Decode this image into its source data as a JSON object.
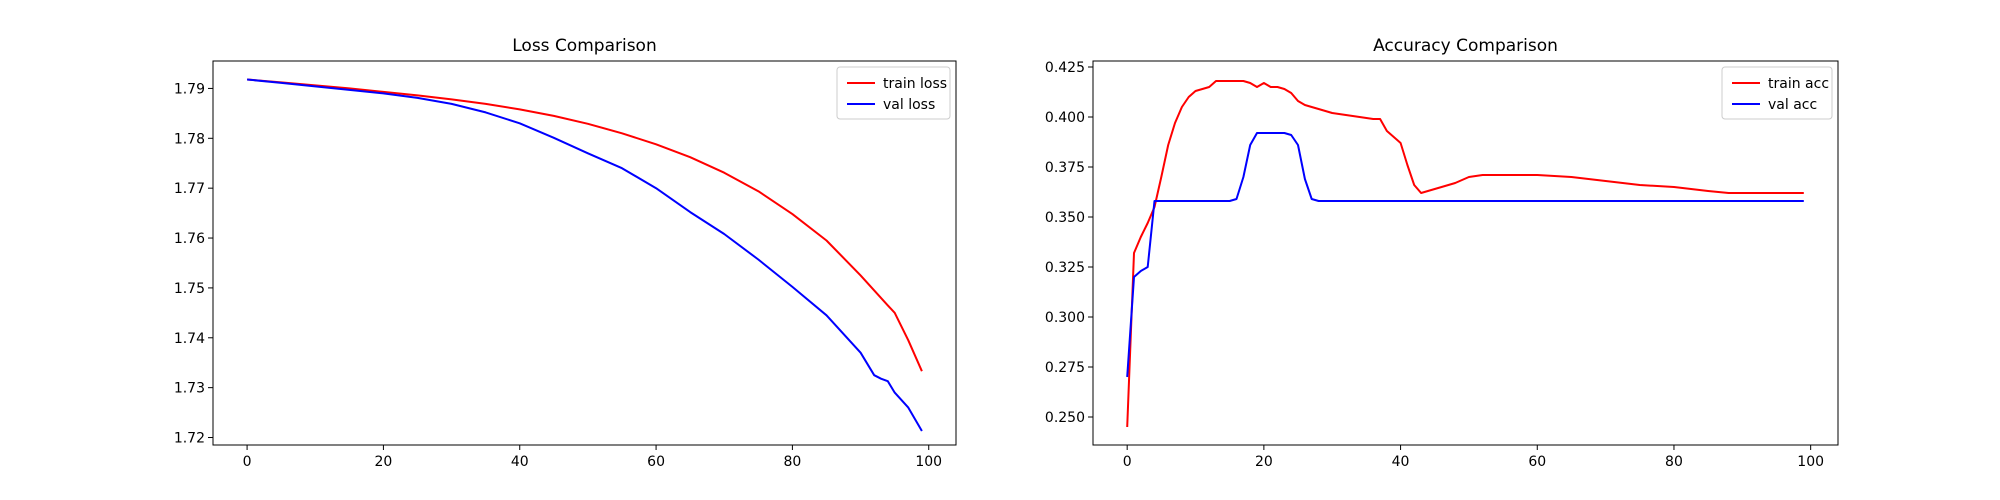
{
  "chart_data": [
    {
      "type": "line",
      "title": "Loss Comparison",
      "xlabel": "",
      "ylabel": "",
      "xlim": [
        -5,
        104
      ],
      "ylim": [
        1.7185,
        1.7955
      ],
      "xticks": [
        0,
        20,
        40,
        60,
        80,
        100
      ],
      "yticks": [
        1.72,
        1.73,
        1.74,
        1.75,
        1.76,
        1.77,
        1.78,
        1.79
      ],
      "ytick_labels": [
        "1.72",
        "1.73",
        "1.74",
        "1.75",
        "1.76",
        "1.77",
        "1.78",
        "1.79"
      ],
      "grid": false,
      "legend_position": "top-right",
      "x": [
        0,
        5,
        10,
        15,
        20,
        25,
        30,
        35,
        40,
        45,
        50,
        55,
        60,
        65,
        70,
        75,
        80,
        85,
        90,
        92,
        93,
        94,
        95,
        97,
        99
      ],
      "series": [
        {
          "name": "train loss",
          "color": "#ff0000",
          "values": [
            1.7918,
            1.7912,
            1.7906,
            1.79,
            1.7893,
            1.7886,
            1.7878,
            1.7869,
            1.7858,
            1.7845,
            1.7829,
            1.781,
            1.7788,
            1.7762,
            1.7731,
            1.7694,
            1.7648,
            1.7595,
            1.7525,
            1.7495,
            1.748,
            1.7465,
            1.745,
            1.7395,
            1.7333
          ]
        },
        {
          "name": "val loss",
          "color": "#0000ff",
          "values": [
            1.7918,
            1.7911,
            1.7904,
            1.7897,
            1.789,
            1.7881,
            1.7869,
            1.7852,
            1.783,
            1.7801,
            1.777,
            1.774,
            1.77,
            1.7652,
            1.7608,
            1.7557,
            1.7502,
            1.7445,
            1.737,
            1.7325,
            1.7318,
            1.7313,
            1.729,
            1.726,
            1.7213
          ]
        }
      ]
    },
    {
      "type": "line",
      "title": "Accuracy Comparison",
      "xlabel": "",
      "ylabel": "",
      "xlim": [
        -5,
        104
      ],
      "ylim": [
        0.236,
        0.428
      ],
      "xticks": [
        0,
        20,
        40,
        60,
        80,
        100
      ],
      "yticks": [
        0.25,
        0.275,
        0.3,
        0.325,
        0.35,
        0.375,
        0.4,
        0.425
      ],
      "ytick_labels": [
        "0.250",
        "0.275",
        "0.300",
        "0.325",
        "0.350",
        "0.375",
        "0.400",
        "0.425"
      ],
      "grid": false,
      "legend_position": "top-right",
      "series": [
        {
          "name": "train acc",
          "color": "#ff0000",
          "x": [
            0,
            1,
            2,
            3,
            4,
            5,
            6,
            7,
            8,
            9,
            10,
            11,
            12,
            13,
            14,
            15,
            16,
            17,
            18,
            19,
            20,
            21,
            22,
            23,
            24,
            25,
            26,
            27,
            28,
            29,
            30,
            32,
            34,
            36,
            37,
            38,
            40,
            41,
            42,
            43,
            44,
            46,
            48,
            50,
            52,
            55,
            58,
            60,
            65,
            70,
            75,
            80,
            85,
            88,
            90,
            92,
            95,
            97,
            99
          ],
          "values": [
            0.245,
            0.332,
            0.34,
            0.347,
            0.355,
            0.37,
            0.386,
            0.397,
            0.405,
            0.41,
            0.413,
            0.414,
            0.415,
            0.418,
            0.418,
            0.418,
            0.418,
            0.418,
            0.417,
            0.415,
            0.417,
            0.415,
            0.415,
            0.414,
            0.412,
            0.408,
            0.406,
            0.405,
            0.404,
            0.403,
            0.402,
            0.401,
            0.4,
            0.399,
            0.399,
            0.393,
            0.387,
            0.376,
            0.366,
            0.362,
            0.363,
            0.365,
            0.367,
            0.37,
            0.371,
            0.371,
            0.371,
            0.371,
            0.37,
            0.368,
            0.366,
            0.365,
            0.363,
            0.362,
            0.362,
            0.362,
            0.362,
            0.362,
            0.362
          ]
        },
        {
          "name": "val acc",
          "color": "#0000ff",
          "x": [
            0,
            1,
            2,
            3,
            4,
            10,
            15,
            16,
            17,
            18,
            19,
            20,
            22,
            23,
            24,
            25,
            26,
            27,
            28,
            30,
            40,
            60,
            80,
            99
          ],
          "values": [
            0.27,
            0.32,
            0.323,
            0.325,
            0.358,
            0.358,
            0.358,
            0.359,
            0.37,
            0.386,
            0.392,
            0.392,
            0.392,
            0.392,
            0.391,
            0.386,
            0.369,
            0.359,
            0.358,
            0.358,
            0.358,
            0.358,
            0.358,
            0.358
          ]
        }
      ]
    }
  ]
}
